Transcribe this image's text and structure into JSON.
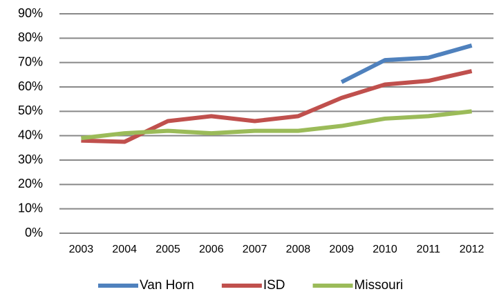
{
  "chart_data": {
    "type": "line",
    "categories": [
      "2003",
      "2004",
      "2005",
      "2006",
      "2007",
      "2008",
      "2009",
      "2010",
      "2011",
      "2012"
    ],
    "series": [
      {
        "name": "Van Horn",
        "color": "#4f81bd",
        "values": [
          null,
          null,
          null,
          null,
          null,
          null,
          62,
          71,
          72,
          77
        ]
      },
      {
        "name": "ISD",
        "color": "#c0504d",
        "values": [
          38,
          37.5,
          46,
          48,
          46,
          48,
          55.5,
          61,
          62.5,
          66.5
        ]
      },
      {
        "name": "Missouri",
        "color": "#9bbb59",
        "values": [
          39,
          41,
          42,
          41,
          42,
          42,
          44,
          47,
          48,
          50
        ]
      }
    ],
    "ylim": [
      0,
      90
    ],
    "yticks": [
      {
        "value": 0,
        "label": "0%"
      },
      {
        "value": 10,
        "label": "10%"
      },
      {
        "value": 20,
        "label": "20%"
      },
      {
        "value": 30,
        "label": "30%"
      },
      {
        "value": 40,
        "label": "40%"
      },
      {
        "value": 50,
        "label": "50%"
      },
      {
        "value": 60,
        "label": "60%"
      },
      {
        "value": 70,
        "label": "70%"
      },
      {
        "value": 80,
        "label": "80%"
      },
      {
        "value": 90,
        "label": "90%"
      }
    ],
    "grid": true,
    "legend": "bottom"
  }
}
